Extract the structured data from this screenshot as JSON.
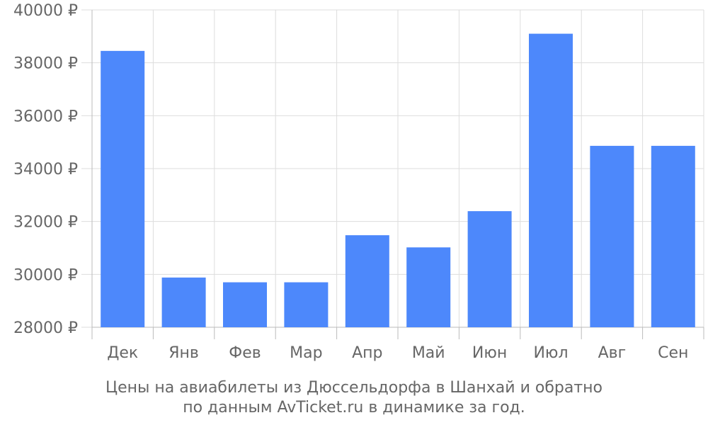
{
  "chart_data": {
    "type": "bar",
    "categories": [
      "Дек",
      "Янв",
      "Фев",
      "Мар",
      "Апр",
      "Май",
      "Июн",
      "Июл",
      "Авг",
      "Сен"
    ],
    "values": [
      38450,
      29880,
      29700,
      29700,
      31480,
      31020,
      32390,
      39100,
      34860,
      34860
    ],
    "ylim": [
      28000,
      40000
    ],
    "yticks": [
      28000,
      30000,
      32000,
      34000,
      36000,
      38000,
      40000
    ],
    "currency_suffix": "₽",
    "grid": true,
    "bar_color": "#4d88fb",
    "caption_lines": [
      "Цены на авиабилеты из Дюссельдорфа в Шанхай и обратно",
      "по данным AvTicket.ru в динамике за год."
    ]
  }
}
